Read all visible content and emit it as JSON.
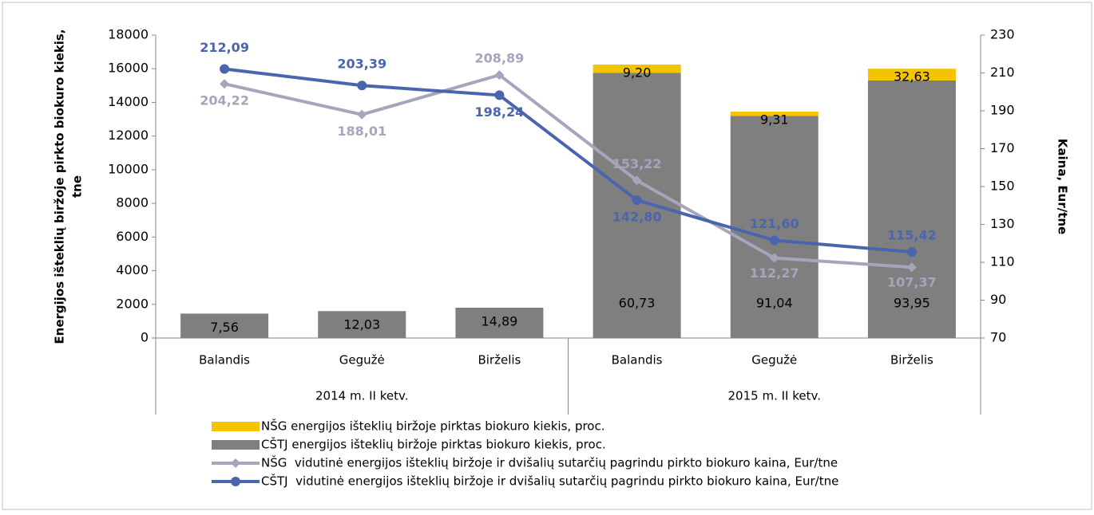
{
  "chart_data": {
    "type": "bar_line",
    "categories": [
      "Balandis",
      "Gegužė",
      "Birželis",
      "Balandis",
      "Gegužė",
      "Birželis"
    ],
    "groups": [
      {
        "label": "2014 m. II ketv.",
        "span": 3
      },
      {
        "label": "2015 m. II ketv.",
        "span": 3
      }
    ],
    "ylabel": [
      "Energijos išteklių biržoje pirkto biokuro kiekis,",
      "tne"
    ],
    "y2label": "Kaina, Eur/tne",
    "ylim": [
      0,
      18000
    ],
    "yticks": [
      0,
      2000,
      4000,
      6000,
      8000,
      10000,
      12000,
      14000,
      16000,
      18000
    ],
    "y2lim": [
      70,
      230
    ],
    "y2ticks": [
      70,
      90,
      110,
      130,
      150,
      170,
      190,
      210,
      230
    ],
    "bars": [
      {
        "name": "CŠTJ energijos išteklių biržoje pirktas biokuro kiekis, proc.",
        "color": "#7f7f7f",
        "values": [
          1450,
          1600,
          1800,
          15750,
          13200,
          15300
        ],
        "labels": [
          "7,56",
          "12,03",
          "14,89",
          "60,73",
          "91,04",
          "93,95"
        ]
      },
      {
        "name": "NŠG energijos išteklių biržoje pirktas biokuro kiekis, proc.",
        "color": "#f5c400",
        "values": [
          null,
          null,
          null,
          500,
          250,
          700
        ],
        "labels": [
          null,
          null,
          null,
          "9,20",
          "9,31",
          "32,63"
        ]
      }
    ],
    "series": [
      {
        "name": "NŠG  vidutinė energijos išteklių biržoje ir dvišalių sutarčių pagrindu pirkto biokuro kaina, Eur/tne",
        "color": "#a5a5bb",
        "marker": "diamond",
        "axis": "y2",
        "values": [
          204.22,
          188.01,
          208.89,
          153.22,
          112.27,
          107.37
        ],
        "value_labels": [
          "204,22",
          "188,01",
          "208,89",
          "153,22",
          "112,27",
          "107,37"
        ]
      },
      {
        "name": "CŠTJ  vidutinė energijos išteklių biržoje ir dvišalių sutarčių pagrindu pirkto biokuro kaina, Eur/tne",
        "color": "#4a65ad",
        "marker": "circle",
        "axis": "y2",
        "values": [
          212.09,
          203.39,
          198.24,
          142.8,
          121.6,
          115.42
        ],
        "value_labels": [
          "212,09",
          "203,39",
          "198,24",
          "142,80",
          "121,60",
          "115,42"
        ]
      }
    ]
  }
}
